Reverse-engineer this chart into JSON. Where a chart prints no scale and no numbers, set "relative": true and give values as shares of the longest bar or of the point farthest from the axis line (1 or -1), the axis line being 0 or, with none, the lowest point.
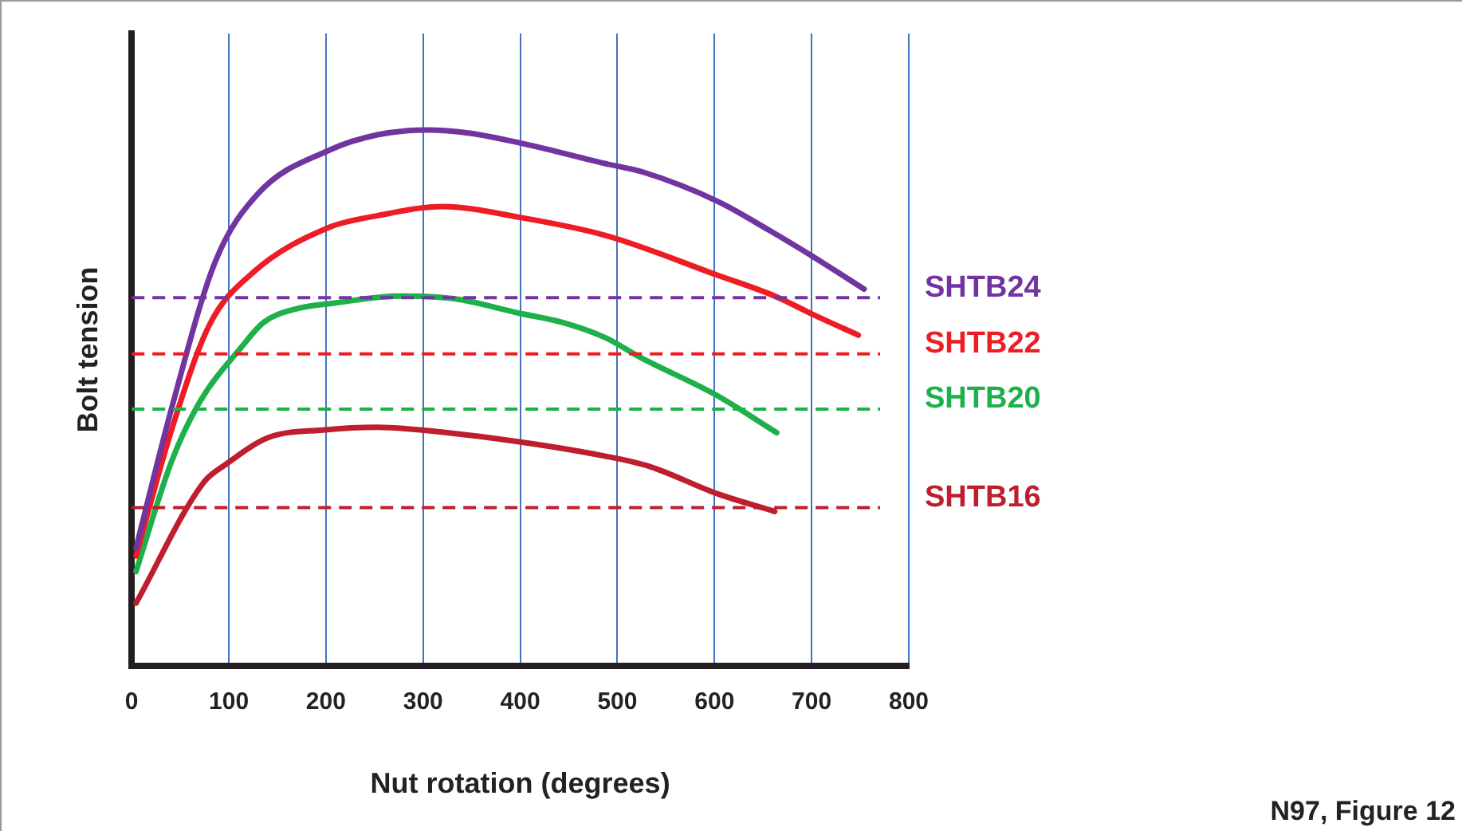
{
  "chart_data": {
    "type": "line",
    "relative": true,
    "xlabel": "Nut rotation (degrees)",
    "ylabel": "Bolt tension",
    "xlim": [
      0,
      800
    ],
    "xticks": [
      0,
      100,
      200,
      300,
      400,
      500,
      600,
      700,
      800
    ],
    "grid": "x",
    "legend": false,
    "marker": "none",
    "line_style": "solid",
    "series": [
      {
        "color": "#7134a0",
        "x": [
          4.5,
          41,
          86,
          130,
          203,
          253,
          304,
          348,
          404,
          488,
          527,
          603,
          656,
          701,
          754
        ],
        "values": [
          0.22,
          0.48,
          0.754,
          0.881,
          0.962,
          0.991,
          1.0,
          0.994,
          0.974,
          0.937,
          0.921,
          0.867,
          0.813,
          0.764,
          0.703
        ]
      },
      {
        "color": "#ee1c24",
        "x": [
          4.5,
          41,
          80,
          125,
          203,
          253,
          320,
          399,
          488,
          603,
          662,
          701,
          748
        ],
        "values": [
          0.205,
          0.44,
          0.636,
          0.734,
          0.818,
          0.84,
          0.857,
          0.837,
          0.803,
          0.729,
          0.69,
          0.656,
          0.617
        ]
      },
      {
        "color": "#1db04b",
        "x": [
          4.5,
          41,
          69,
          114,
          136,
          169,
          209,
          276,
          332,
          399,
          443,
          488,
          522,
          603,
          664
        ],
        "values": [
          0.176,
          0.381,
          0.489,
          0.597,
          0.641,
          0.666,
          0.677,
          0.69,
          0.685,
          0.658,
          0.641,
          0.612,
          0.577,
          0.504,
          0.435
        ]
      },
      {
        "color": "#be1e2d",
        "x": [
          4.5,
          74,
          97,
          141,
          197,
          253,
          298,
          399,
          488,
          533,
          603,
          662
        ],
        "values": [
          0.117,
          0.342,
          0.376,
          0.426,
          0.44,
          0.445,
          0.44,
          0.418,
          0.391,
          0.372,
          0.321,
          0.288
        ]
      }
    ],
    "ref_lines": [
      {
        "axis": "y",
        "value": 0.687,
        "label": "SHTB24",
        "color": "#7134a0",
        "line_style": "dashed"
      },
      {
        "axis": "y",
        "value": 0.582,
        "label": "SHTB22",
        "color": "#ee1c24",
        "line_style": "dashed"
      },
      {
        "axis": "y",
        "value": 0.479,
        "label": "SHTB20",
        "color": "#1db04b",
        "line_style": "dashed"
      },
      {
        "axis": "y",
        "value": 0.295,
        "label": "SHTB16",
        "color": "#be1e2d",
        "line_style": "dashed"
      }
    ],
    "annotations": [
      "N97, Figure 12"
    ]
  }
}
